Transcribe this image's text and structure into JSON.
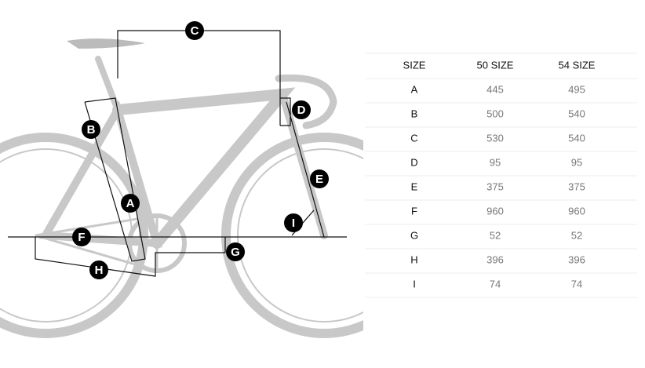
{
  "diagram": {
    "labels": [
      "C",
      "D",
      "B",
      "E",
      "A",
      "I",
      "F",
      "G",
      "H"
    ]
  },
  "table": {
    "header": [
      "SIZE",
      "50 SIZE",
      "54 SIZE"
    ],
    "rows": [
      [
        "A",
        445,
        495
      ],
      [
        "B",
        500,
        540
      ],
      [
        "C",
        530,
        540
      ],
      [
        "D",
        95,
        95
      ],
      [
        "E",
        375,
        375
      ],
      [
        "F",
        960,
        960
      ],
      [
        "G",
        52,
        52
      ],
      [
        "H",
        396,
        396
      ],
      [
        "I",
        74,
        74
      ]
    ]
  }
}
